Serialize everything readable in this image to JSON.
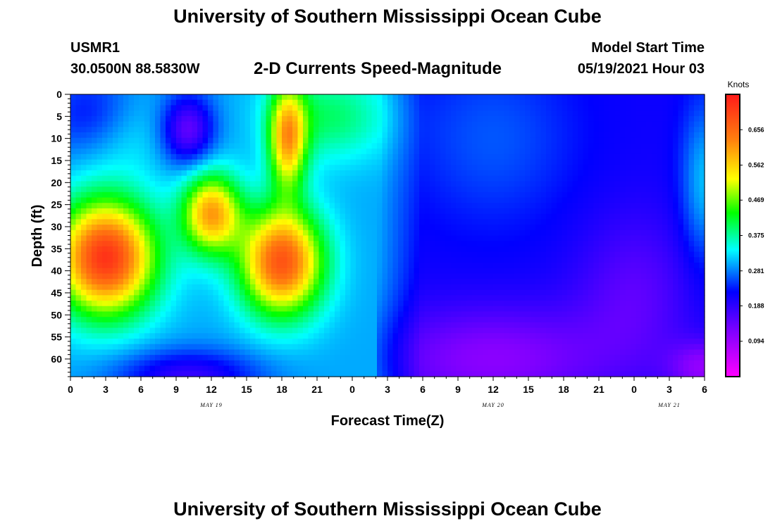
{
  "header": {
    "title": "University of Southern Mississippi Ocean Cube",
    "station": "USMR1",
    "coordinates": "30.0500N  88.5830W",
    "subtitle": "2-D Currents Speed-Magnitude",
    "model_start_label": "Model Start Time",
    "model_start_value": "05/19/2021 Hour 03"
  },
  "footer": {
    "title": "University of Southern Mississippi Ocean Cube"
  },
  "chart_data": {
    "type": "heatmap",
    "title": "2-D Currents Speed-Magnitude",
    "xlabel": "Forecast Time(Z)",
    "ylabel": "Depth (ft)",
    "x_range_hours": [
      0,
      54
    ],
    "y_range_ft": [
      0,
      64
    ],
    "x_tick_labels": [
      "0",
      "3",
      "6",
      "9",
      "12",
      "15",
      "18",
      "21",
      "0",
      "3",
      "6",
      "9",
      "12",
      "15",
      "18",
      "21",
      "0",
      "3",
      "6"
    ],
    "y_tick_labels": [
      "0",
      "5",
      "10",
      "15",
      "20",
      "25",
      "30",
      "35",
      "40",
      "45",
      "50",
      "55",
      "60"
    ],
    "date_labels": [
      {
        "text": "MAY 19",
        "hour": 12
      },
      {
        "text": "MAY 20",
        "hour": 36
      },
      {
        "text": "MAY 21",
        "hour": 51
      }
    ],
    "colorbar": {
      "unit": "Knots",
      "range": [
        0.0,
        0.75
      ],
      "tick_values": [
        0.656,
        0.562,
        0.469,
        0.375,
        0.281,
        0.188,
        0.094
      ],
      "tick_labels": [
        "0.656",
        "0.562",
        "0.469",
        "0.375",
        "0.281",
        "0.188",
        "0.094"
      ]
    },
    "grid": false
  },
  "colors": {
    "max": "#ff1a1a",
    "high": "#ff7f0e",
    "mid_high": "#ffff00",
    "mid": "#00ff00",
    "mid_low": "#00ffff",
    "low": "#0000ff",
    "min": "#ff00ff"
  }
}
